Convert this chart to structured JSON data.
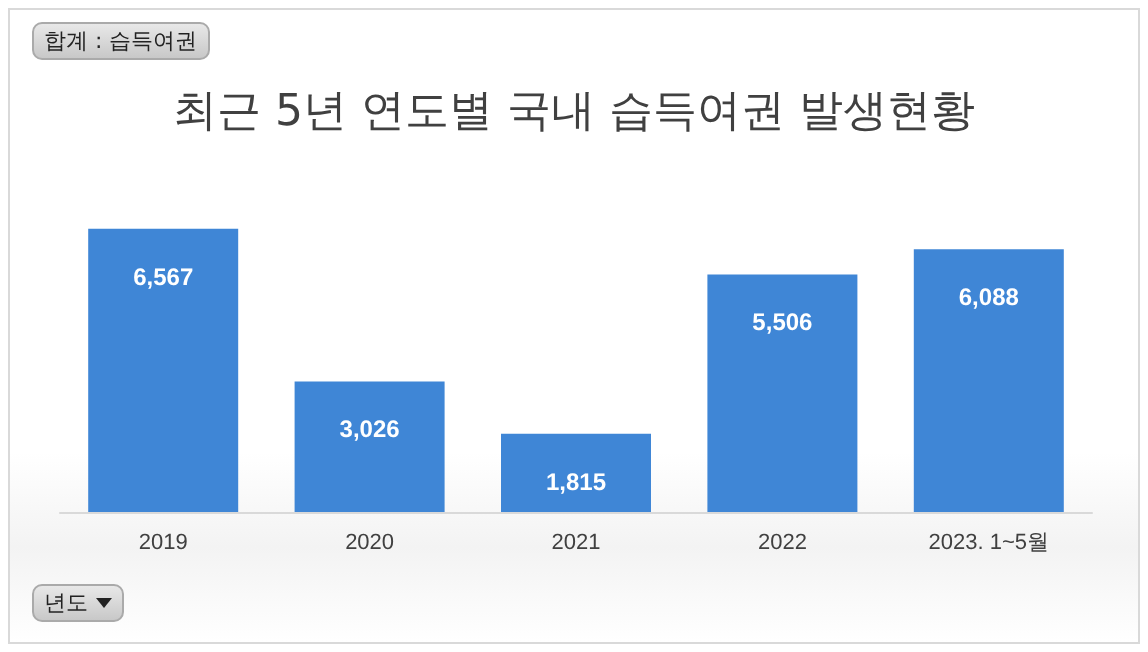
{
  "chart_data": {
    "type": "bar",
    "title": "최근 5년 연도별 국내 습득여권 발생현황",
    "categories": [
      "2019",
      "2020",
      "2021",
      "2022",
      "2023. 1~5월"
    ],
    "values": [
      6567,
      3026,
      1815,
      5506,
      6088
    ],
    "value_labels": [
      "6,567",
      "3,026",
      "1,815",
      "5,506",
      "6,088"
    ],
    "color": "#3f86d6",
    "annotations": [
      "합계 : 습득여권",
      "년도"
    ]
  }
}
